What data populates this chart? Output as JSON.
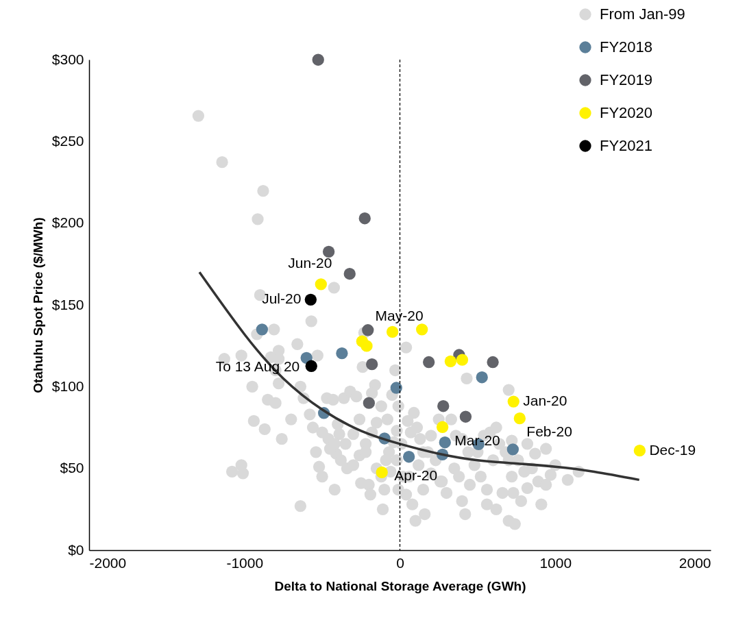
{
  "chart_data": {
    "type": "scatter",
    "xlabel": "Delta to National Storage Average (GWh)",
    "ylabel": "Otahuhu Spot Price ($/MWh)",
    "xlim": [
      -2000,
      2000
    ],
    "ylim": [
      0,
      300
    ],
    "xticks": [
      -2000,
      -1000,
      0,
      1000,
      2000
    ],
    "yticks": [
      {
        "value": 0,
        "label": "$0"
      },
      {
        "value": 50,
        "label": "$50"
      },
      {
        "value": 100,
        "label": "$100"
      },
      {
        "value": 150,
        "label": "$150"
      },
      {
        "value": 200,
        "label": "$200"
      },
      {
        "value": 250,
        "label": "$250"
      },
      {
        "value": 300,
        "label": "$300"
      }
    ],
    "legend": "top right",
    "marker": "circle",
    "series": [
      {
        "name": "From Jan-99",
        "color": "#d9d9d9",
        "x": [
          -1297,
          -1144,
          -880,
          -915,
          -424,
          -900,
          -920,
          -810,
          -780,
          -780,
          -1130,
          -1020,
          -950,
          -830,
          -800,
          -780,
          -850,
          -800,
          -940,
          -870,
          -760,
          -660,
          -570,
          -530,
          -640,
          -620,
          -580,
          -560,
          -700,
          -1080,
          -1020,
          -1010,
          -640,
          -540,
          -520,
          -500,
          -470,
          -430,
          -400,
          -390,
          -360,
          -320,
          -280,
          -260,
          -300,
          -350,
          -410,
          -420,
          -450,
          -500,
          -460,
          -420,
          -380,
          -340,
          -300,
          -260,
          -220,
          -180,
          -150,
          -120,
          -160,
          -180,
          -220,
          -250,
          -200,
          -190,
          -150,
          -120,
          -100,
          -110,
          -70,
          -40,
          -20,
          -10,
          -50,
          -80,
          10,
          50,
          70,
          90,
          110,
          130,
          150,
          60,
          40,
          80,
          100,
          150,
          160,
          200,
          230,
          270,
          300,
          350,
          380,
          400,
          420,
          450,
          480,
          500,
          520,
          560,
          580,
          620,
          640,
          680,
          700,
          720,
          730,
          700,
          720,
          760,
          800,
          820,
          850,
          870,
          890,
          910,
          940,
          970,
          940,
          1000,
          1080,
          1150,
          430,
          400,
          330,
          260,
          560,
          620,
          660,
          700,
          740,
          780,
          820,
          600,
          540,
          440,
          360,
          250,
          200,
          180,
          -30,
          40,
          -230,
          -10,
          20,
          -60,
          -90,
          -20,
          120,
          -240
        ],
        "values": [
          265.6,
          237.3,
          219.7,
          202.4,
          160.5,
          156,
          132,
          135,
          122,
          117,
          117,
          119,
          100,
          118,
          110,
          102,
          92,
          90,
          79,
          74,
          68,
          126,
          140,
          119,
          100,
          93,
          83,
          75,
          80,
          48,
          52,
          47,
          27,
          60,
          51,
          45,
          93,
          92,
          77,
          71,
          93,
          97,
          94,
          80,
          71,
          65,
          59,
          37,
          62,
          72,
          68,
          65,
          55,
          50,
          52,
          58,
          65,
          72,
          78,
          88,
          101,
          96,
          60,
          41,
          40,
          34,
          50,
          45,
          37,
          25,
          60,
          66,
          73,
          88,
          95,
          80,
          65,
          79,
          72,
          84,
          75,
          68,
          60,
          45,
          34,
          28,
          18,
          37,
          22,
          47,
          55,
          42,
          35,
          50,
          45,
          30,
          22,
          40,
          52,
          60,
          45,
          37,
          72,
          75,
          65,
          60,
          55,
          45,
          35,
          98,
          67,
          55,
          48,
          38,
          50,
          59,
          42,
          28,
          40,
          46,
          62,
          52,
          43,
          48,
          105,
          68,
          80,
          42,
          28,
          25,
          35,
          18,
          16,
          30,
          65,
          55,
          70,
          60,
          70,
          80,
          70,
          60,
          110,
          124,
          133,
          37,
          45,
          48,
          55,
          55,
          52,
          112
        ]
      },
      {
        "name": "FY2018",
        "color": "#5b7f99",
        "x": [
          -887,
          -601,
          -373,
          -489,
          -23,
          -99,
          58,
          290,
          274,
          506,
          727,
          528
        ],
        "values": [
          135,
          117.6,
          120.4,
          83.9,
          99.3,
          68.3,
          57.1,
          65.9,
          58.5,
          64.8,
          61.6,
          105.7
        ]
      },
      {
        "name": "FY2019",
        "color": "#626369",
        "x": [
          -526,
          -226,
          -458,
          -323,
          -206,
          -180,
          -199,
          186,
          381,
          598,
          279,
          423
        ],
        "values": [
          299.9,
          202.9,
          182.5,
          169,
          134.6,
          113.7,
          90,
          115,
          119.4,
          115,
          88.1,
          81.6
        ]
      },
      {
        "name": "FY2020",
        "color": "#fff200",
        "x": [
          -508,
          -48,
          -243,
          -214,
          142,
          326,
          401,
          731,
          771,
          274,
          -116,
          1543
        ],
        "values": [
          162.6,
          133.5,
          127.7,
          124.9,
          135,
          115.5,
          116.4,
          90.9,
          80.6,
          75.3,
          47.6,
          60.9
        ]
      },
      {
        "name": "FY2021",
        "color": "#000000",
        "x": [
          -574,
          -570
        ],
        "values": [
          153.2,
          112.6
        ]
      },
      {
        "type": "line",
        "marker": "none",
        "color": "#333333",
        "x": [
          -1290,
          -1000,
          -750,
          -500,
          -250,
          0,
          250,
          500,
          750,
          1000,
          1250,
          1540
        ],
        "values": [
          170,
          132,
          105,
          86,
          73,
          65,
          59,
          55,
          53,
          51,
          48,
          43
        ]
      }
    ],
    "ref_lines": [
      {
        "axis": "x",
        "value": 0,
        "color": "#000000",
        "line_style": "dashed"
      }
    ],
    "annotations": [
      {
        "text": "Jun-20",
        "x": -508,
        "y": 162.6
      },
      {
        "text": "Jul-20",
        "x": -574,
        "y": 153.2
      },
      {
        "text": "To 13 Aug 20",
        "x": -570,
        "y": 112.6
      },
      {
        "text": "May-20",
        "x": -48,
        "y": 133.5
      },
      {
        "text": "Jan-20",
        "x": 731,
        "y": 90.9
      },
      {
        "text": "Feb-20",
        "x": 771,
        "y": 80.6
      },
      {
        "text": "Mar-20",
        "x": 290,
        "y": 65.9
      },
      {
        "text": "Apr-20",
        "x": -116,
        "y": 47.6
      },
      {
        "text": "Dec-19",
        "x": 1543,
        "y": 60.9
      }
    ]
  }
}
